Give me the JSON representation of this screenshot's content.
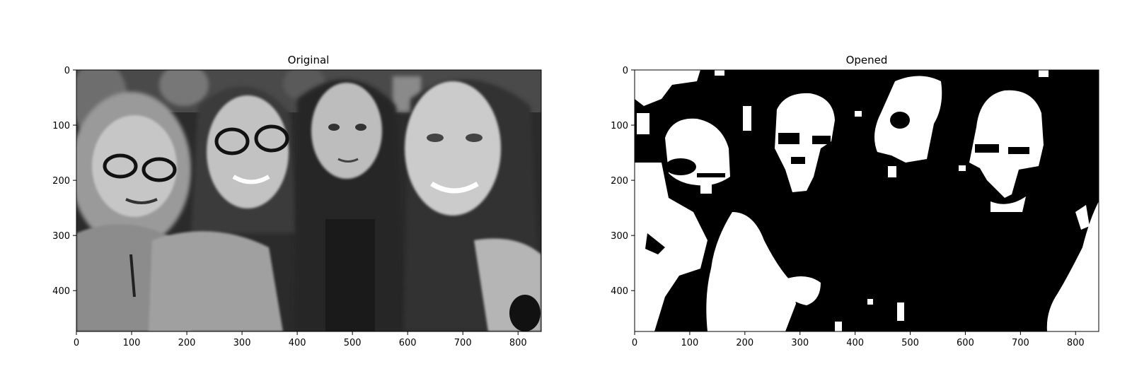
{
  "chart_data": [
    {
      "type": "image",
      "title": "Original",
      "image_content": "grayscale photograph of four smiling women posing for a selfie",
      "xticks": [
        0,
        100,
        200,
        300,
        400,
        500,
        600,
        700,
        800
      ],
      "yticks": [
        0,
        100,
        200,
        300,
        400
      ],
      "xlim": [
        0,
        842
      ],
      "ylim": [
        474,
        0
      ]
    },
    {
      "type": "image",
      "title": "Opened",
      "image_content": "binary (black and white) mask after morphological opening of the original photo; white blobs mark faces and bright regions",
      "xticks": [
        0,
        100,
        200,
        300,
        400,
        500,
        600,
        700,
        800
      ],
      "yticks": [
        0,
        100,
        200,
        300,
        400
      ],
      "xlim": [
        0,
        842
      ],
      "ylim": [
        474,
        0
      ]
    }
  ],
  "colors": {
    "background": "#ffffff",
    "axis": "#000000",
    "mask_foreground": "#ffffff",
    "mask_background": "#000000"
  }
}
